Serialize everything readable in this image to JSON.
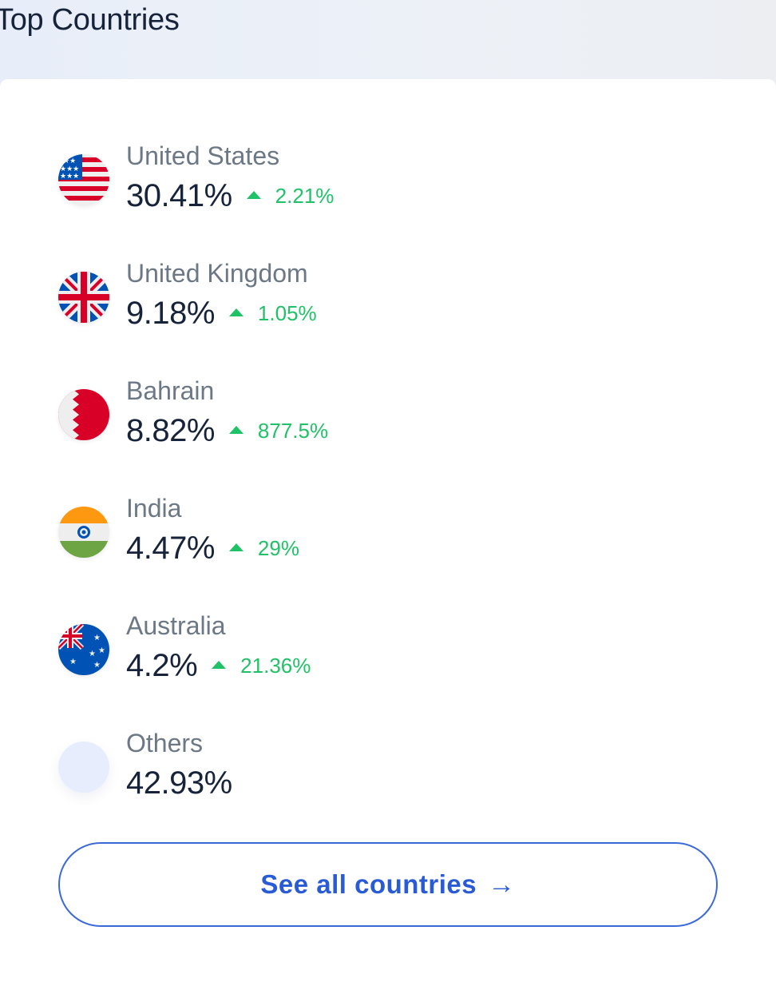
{
  "title": "Top Countries",
  "countries": [
    {
      "name": "United States",
      "share": "30.41%",
      "change": "2.21%",
      "trend": "up",
      "flag": "us-flag-icon"
    },
    {
      "name": "United Kingdom",
      "share": "9.18%",
      "change": "1.05%",
      "trend": "up",
      "flag": "uk-flag-icon"
    },
    {
      "name": "Bahrain",
      "share": "8.82%",
      "change": "877.5%",
      "trend": "up",
      "flag": "bahrain-flag-icon"
    },
    {
      "name": "India",
      "share": "4.47%",
      "change": "29%",
      "trend": "up",
      "flag": "india-flag-icon"
    },
    {
      "name": "Australia",
      "share": "4.2%",
      "change": "21.36%",
      "trend": "up",
      "flag": "australia-flag-icon"
    },
    {
      "name": "Others",
      "share": "42.93%"
    }
  ],
  "button": {
    "label": "See all countries",
    "arrow": "→"
  },
  "colors": {
    "positive": "#1fc266",
    "accent": "#2a5bd7",
    "text": "#16233a",
    "muted": "#6c7886"
  }
}
